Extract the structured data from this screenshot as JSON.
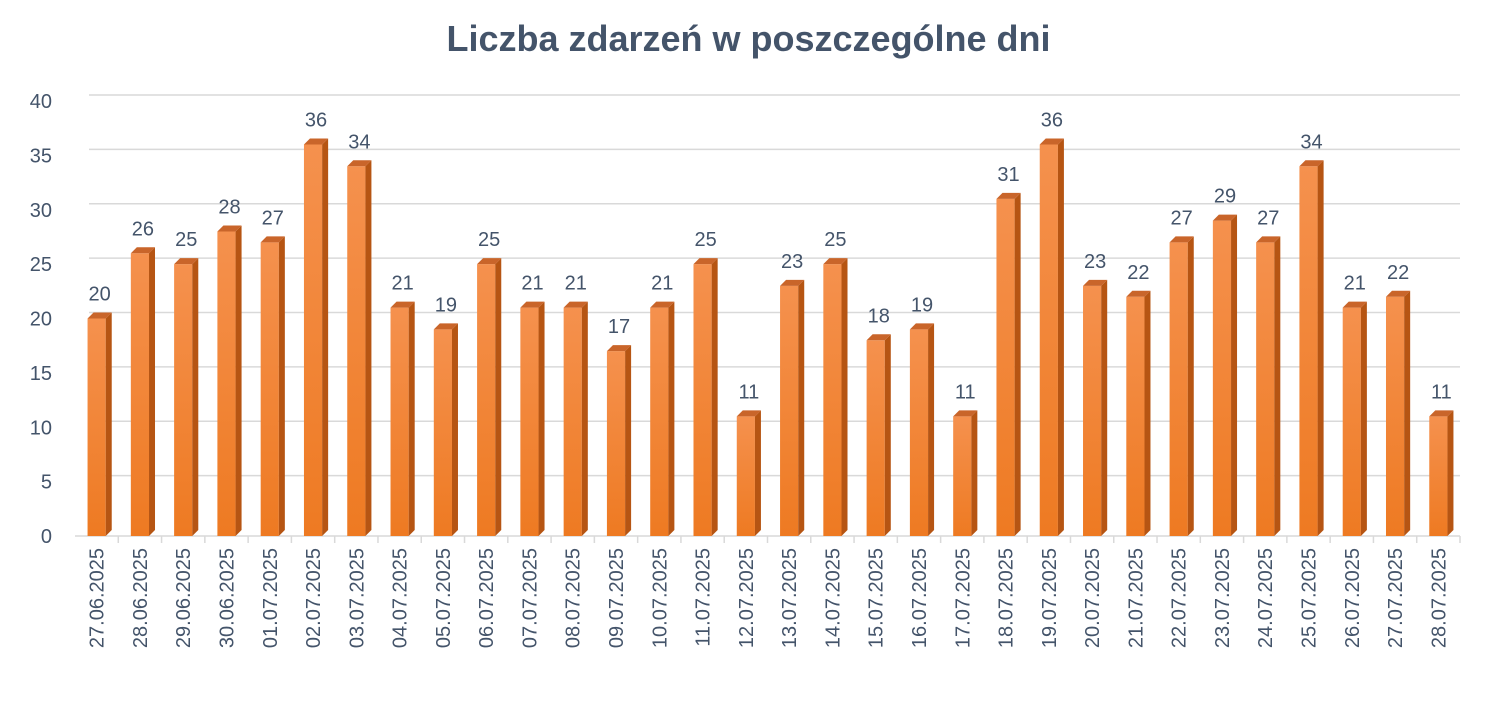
{
  "chart_data": {
    "type": "bar",
    "title": "Liczba zdarzeń w poszczególne dni",
    "xlabel": "",
    "ylabel": "",
    "ylim": [
      0,
      40
    ],
    "yticks": [
      0,
      5,
      10,
      15,
      20,
      25,
      30,
      35,
      40
    ],
    "grid": true,
    "legend": "none",
    "bar_color": "#f07f2d",
    "bar_side_color": "#b65513",
    "bar_top_color": "#c9652a",
    "text_color": "#44546a",
    "grid_color": "#d9d9d9",
    "categories": [
      "27.06.2025",
      "28.06.2025",
      "29.06.2025",
      "30.06.2025",
      "01.07.2025",
      "02.07.2025",
      "03.07.2025",
      "04.07.2025",
      "05.07.2025",
      "06.07.2025",
      "07.07.2025",
      "08.07.2025",
      "09.07.2025",
      "10.07.2025",
      "11.07.2025",
      "12.07.2025",
      "13.07.2025",
      "14.07.2025",
      "15.07.2025",
      "16.07.2025",
      "17.07.2025",
      "18.07.2025",
      "19.07.2025",
      "20.07.2025",
      "21.07.2025",
      "22.07.2025",
      "23.07.2025",
      "24.07.2025",
      "25.07.2025",
      "26.07.2025",
      "27.07.2025",
      "28.07.2025"
    ],
    "values": [
      20,
      26,
      25,
      28,
      27,
      36,
      34,
      21,
      19,
      25,
      21,
      21,
      17,
      21,
      25,
      11,
      23,
      25,
      18,
      19,
      11,
      31,
      36,
      23,
      22,
      27,
      29,
      27,
      34,
      21,
      22,
      11
    ]
  }
}
